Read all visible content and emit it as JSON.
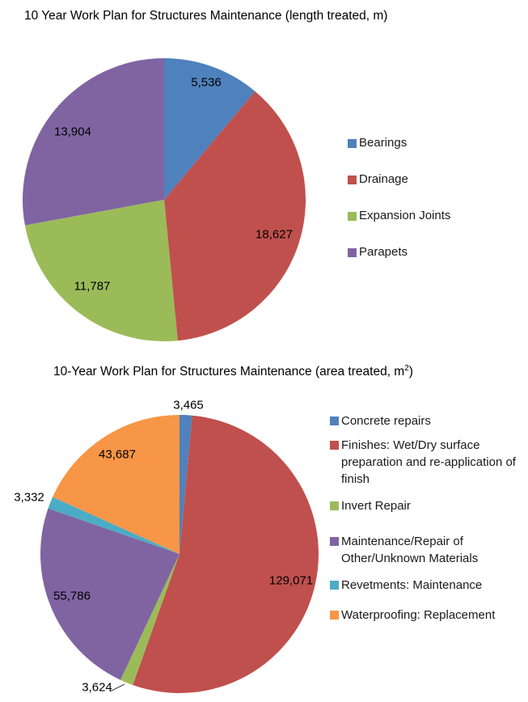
{
  "chart_data": [
    {
      "type": "pie",
      "title": "10 Year Work Plan for Structures Maintenance (length treated, m)",
      "labels": [
        "Bearings",
        "Drainage",
        "Expansion Joints",
        "Parapets"
      ],
      "values": [
        5536,
        18627,
        11787,
        13904
      ],
      "data_labels": [
        "5,536",
        "18,627",
        "11,787",
        "13,904"
      ],
      "colors": [
        "#4F81BD",
        "#C0504D",
        "#9BBB59",
        "#8064A2"
      ],
      "total": 49854,
      "start_angle_deg": 0,
      "direction": "clockwise",
      "legend_position": "right",
      "legend_entries": [
        "Bearings",
        "Drainage",
        "Expansion Joints",
        "Parapets"
      ]
    },
    {
      "type": "pie",
      "title": "10-Year Work Plan for Structures Maintenance (area treated, m2)",
      "title_parts": {
        "base": "10-Year Work Plan for Structures Maintenance (area treated, m",
        "sup": "2",
        "close": ")"
      },
      "labels": [
        "Concrete repairs",
        "Finishes: Wet/Dry surface preparation and re-application of finish",
        "Invert Repair",
        "Maintenance/Repair of Other/Unknown Materials",
        "Revetments: Maintenance",
        "Waterproofing: Replacement"
      ],
      "values": [
        3465,
        129071,
        3624,
        55786,
        3332,
        43687
      ],
      "data_labels": [
        "3,465",
        "129,071",
        "3,624",
        "55,786",
        "3,332",
        "43,687"
      ],
      "colors": [
        "#4F81BD",
        "#C0504D",
        "#9BBB59",
        "#8064A2",
        "#4BACC6",
        "#F79646"
      ],
      "total": 238965,
      "start_angle_deg": 0,
      "direction": "clockwise",
      "legend_position": "right",
      "legend_entries": [
        "Concrete repairs",
        "Finishes: Wet/Dry surface preparation and re-application of finish",
        "Invert Repair",
        "Maintenance/Repair of Other/Unknown Materials",
        "Revetments: Maintenance",
        "Waterproofing: Replacement"
      ]
    }
  ]
}
